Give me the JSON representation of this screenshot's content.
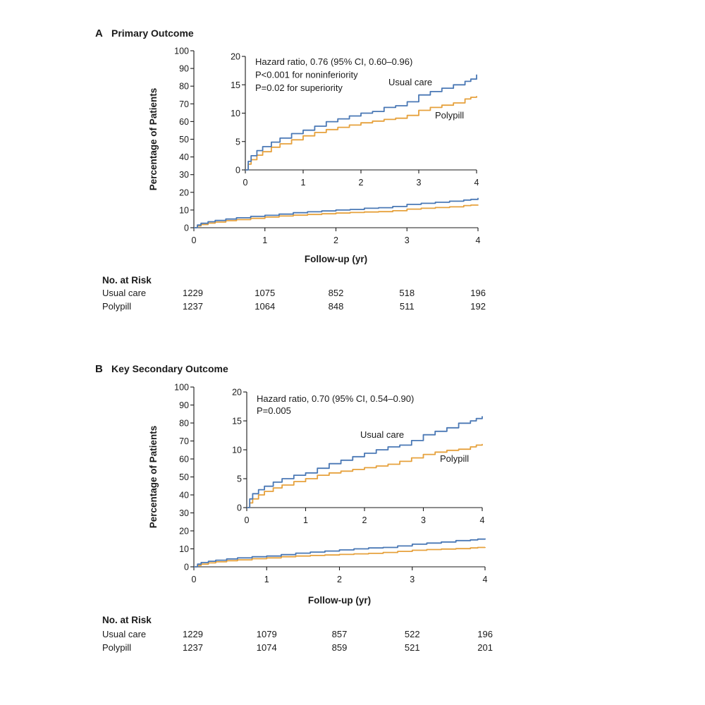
{
  "colors": {
    "usual_care": "#4a78b5",
    "polypill": "#e6a13c",
    "text": "#1a1a1a"
  },
  "chart_data": [
    {
      "type": "line",
      "panel_letter": "A",
      "title": "Primary Outcome",
      "xlabel": "Follow-up (yr)",
      "ylabel": "Percentage of Patients",
      "xlim": [
        0,
        4
      ],
      "ylim": [
        0,
        100
      ],
      "x_ticks": [
        "0",
        "1",
        "2",
        "3",
        "4"
      ],
      "y_ticks": [
        "0",
        "10",
        "20",
        "30",
        "40",
        "50",
        "60",
        "70",
        "80",
        "90",
        "100"
      ],
      "series": [
        {
          "name": "Usual care",
          "x": [
            0,
            0.05,
            0.1,
            0.2,
            0.3,
            0.45,
            0.6,
            0.8,
            1.0,
            1.2,
            1.4,
            1.6,
            1.8,
            2.0,
            2.2,
            2.4,
            2.6,
            2.8,
            3.0,
            3.2,
            3.4,
            3.6,
            3.8,
            3.9,
            4.0
          ],
          "values": [
            0,
            1.5,
            2.5,
            3.4,
            4.1,
            4.9,
            5.6,
            6.4,
            7.0,
            7.7,
            8.5,
            9.0,
            9.5,
            10.0,
            10.3,
            11.0,
            11.3,
            12.0,
            13.2,
            13.8,
            14.4,
            15.0,
            15.6,
            16.0,
            16.8
          ]
        },
        {
          "name": "Polypill",
          "x": [
            0,
            0.05,
            0.1,
            0.2,
            0.3,
            0.45,
            0.6,
            0.8,
            1.0,
            1.2,
            1.4,
            1.6,
            1.8,
            2.0,
            2.2,
            2.4,
            2.6,
            2.8,
            3.0,
            3.2,
            3.4,
            3.6,
            3.8,
            3.9,
            4.0
          ],
          "values": [
            0,
            1.0,
            1.8,
            2.6,
            3.2,
            4.0,
            4.6,
            5.3,
            6.0,
            6.6,
            7.1,
            7.5,
            7.9,
            8.3,
            8.6,
            8.9,
            9.1,
            9.6,
            10.5,
            11.0,
            11.4,
            11.8,
            12.5,
            12.8,
            13.0
          ]
        }
      ],
      "inset": {
        "xlim": [
          0,
          4
        ],
        "ylim": [
          0,
          20
        ],
        "x_ticks": [
          "0",
          "1",
          "2",
          "3",
          "4"
        ],
        "y_ticks": [
          "0",
          "5",
          "10",
          "15",
          "20"
        ],
        "annotation": [
          "Hazard ratio, 0.76 (95% CI, 0.60–0.96)",
          "P<0.001 for noninferiority",
          "P=0.02 for superiority"
        ],
        "labels": {
          "usual_care": "Usual care",
          "polypill": "Polypill"
        }
      },
      "risk_table": {
        "heading": "No. at Risk",
        "rows": [
          {
            "name": "Usual care",
            "values": [
              "1229",
              "1075",
              "852",
              "518",
              "196"
            ]
          },
          {
            "name": "Polypill",
            "values": [
              "1237",
              "1064",
              "848",
              "511",
              "192"
            ]
          }
        ]
      }
    },
    {
      "type": "line",
      "panel_letter": "B",
      "title": "Key Secondary Outcome",
      "xlabel": "Follow-up (yr)",
      "ylabel": "Percentage of Patients",
      "xlim": [
        0,
        4
      ],
      "ylim": [
        0,
        100
      ],
      "x_ticks": [
        "0",
        "1",
        "2",
        "3",
        "4"
      ],
      "y_ticks": [
        "0",
        "10",
        "20",
        "30",
        "40",
        "50",
        "60",
        "70",
        "80",
        "90",
        "100"
      ],
      "series": [
        {
          "name": "Usual care",
          "x": [
            0,
            0.05,
            0.1,
            0.2,
            0.3,
            0.45,
            0.6,
            0.8,
            1.0,
            1.2,
            1.4,
            1.6,
            1.8,
            2.0,
            2.2,
            2.4,
            2.6,
            2.8,
            3.0,
            3.2,
            3.4,
            3.6,
            3.8,
            3.9,
            4.0
          ],
          "values": [
            0,
            1.5,
            2.4,
            3.1,
            3.7,
            4.4,
            5.0,
            5.6,
            6.0,
            6.8,
            7.6,
            8.2,
            8.8,
            9.4,
            10.0,
            10.5,
            10.8,
            11.6,
            12.6,
            13.2,
            13.8,
            14.6,
            15.0,
            15.4,
            15.8
          ]
        },
        {
          "name": "Polypill",
          "x": [
            0,
            0.05,
            0.1,
            0.2,
            0.3,
            0.45,
            0.6,
            0.8,
            1.0,
            1.2,
            1.4,
            1.6,
            1.8,
            2.0,
            2.2,
            2.4,
            2.6,
            2.8,
            3.0,
            3.2,
            3.4,
            3.6,
            3.8,
            3.9,
            4.0
          ],
          "values": [
            0,
            0.8,
            1.5,
            2.2,
            2.8,
            3.4,
            3.9,
            4.5,
            5.0,
            5.6,
            6.0,
            6.3,
            6.6,
            6.9,
            7.2,
            7.5,
            8.0,
            8.6,
            9.2,
            9.6,
            9.9,
            10.1,
            10.5,
            10.8,
            11.0
          ]
        }
      ],
      "inset": {
        "xlim": [
          0,
          4
        ],
        "ylim": [
          0,
          20
        ],
        "x_ticks": [
          "0",
          "1",
          "2",
          "3",
          "4"
        ],
        "y_ticks": [
          "0",
          "5",
          "10",
          "15",
          "20"
        ],
        "annotation": [
          "Hazard ratio, 0.70 (95% CI, 0.54–0.90)",
          "P=0.005"
        ],
        "labels": {
          "usual_care": "Usual care",
          "polypill": "Polypill"
        }
      },
      "risk_table": {
        "heading": "No. at Risk",
        "rows": [
          {
            "name": "Usual care",
            "values": [
              "1229",
              "1079",
              "857",
              "522",
              "196"
            ]
          },
          {
            "name": "Polypill",
            "values": [
              "1237",
              "1074",
              "859",
              "521",
              "201"
            ]
          }
        ]
      }
    }
  ]
}
